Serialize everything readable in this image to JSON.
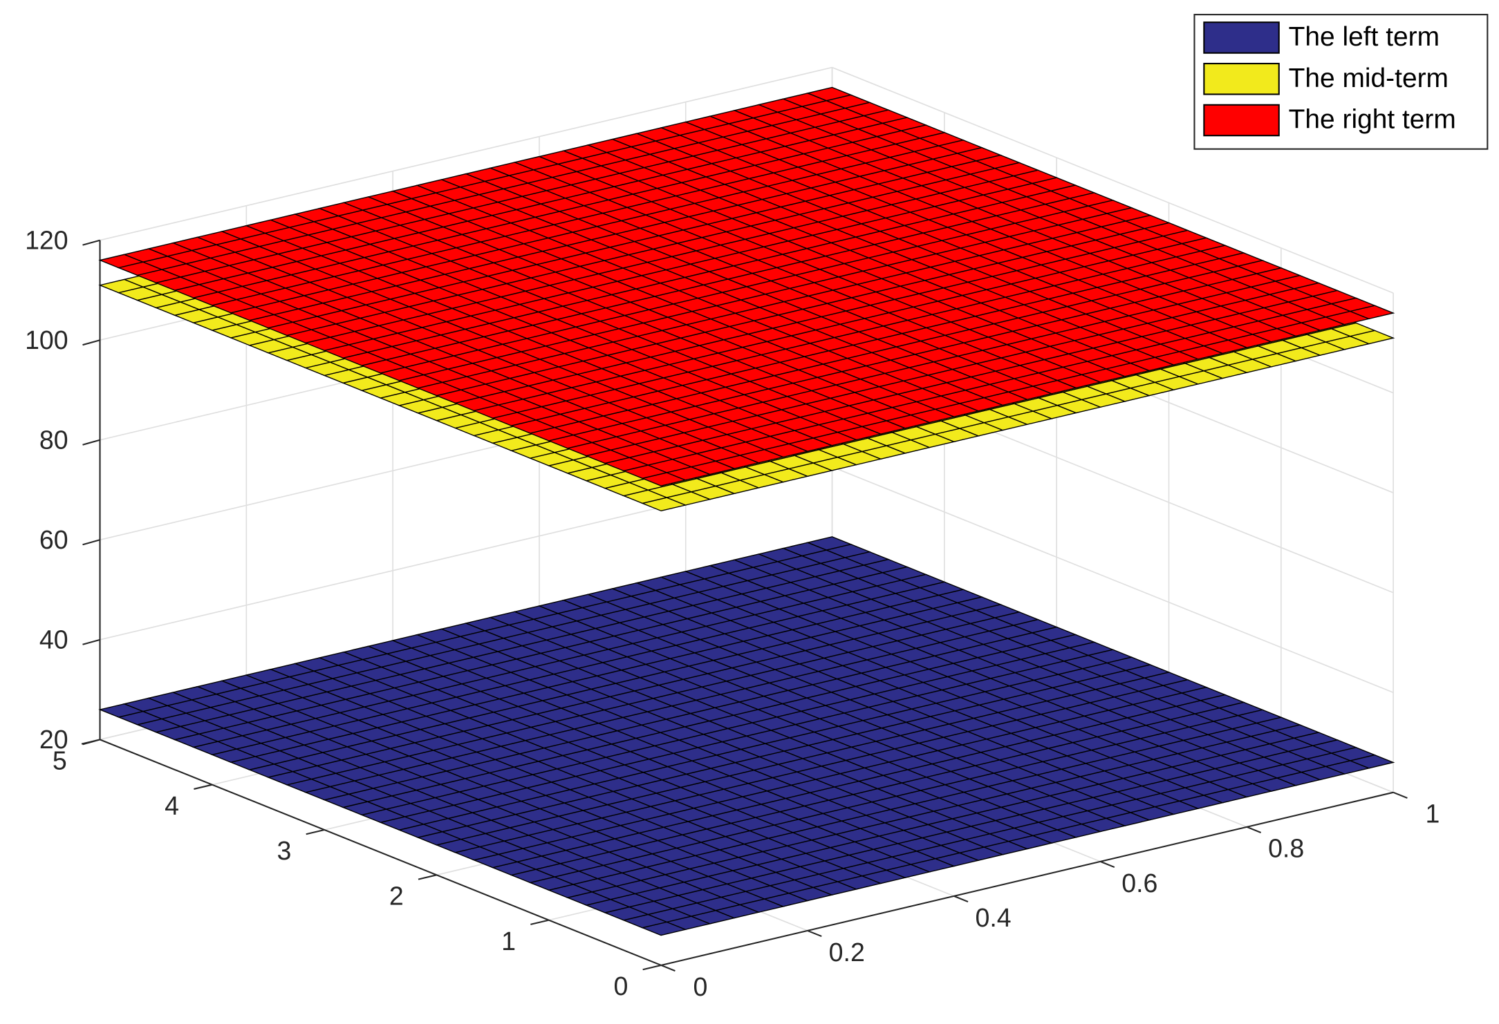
{
  "chart_data": {
    "type": "surface",
    "series": [
      {
        "name": "The left term",
        "color": "#2e2e8a",
        "value": 26
      },
      {
        "name": "The mid-term",
        "color": "#f2ea1c",
        "value": 111
      },
      {
        "name": "The right term",
        "color": "#ff0000",
        "value": 116
      }
    ],
    "mesh": 30,
    "xlim": [
      0,
      1
    ],
    "xticks": [
      0,
      0.2,
      0.4,
      0.6,
      0.8,
      1
    ],
    "ylim": [
      0,
      5
    ],
    "yticks": [
      0,
      1,
      2,
      3,
      4,
      5
    ],
    "zlim": [
      20,
      120
    ],
    "zticks": [
      20,
      40,
      60,
      80,
      100,
      120
    ],
    "grid": true,
    "legend": "northeast"
  }
}
